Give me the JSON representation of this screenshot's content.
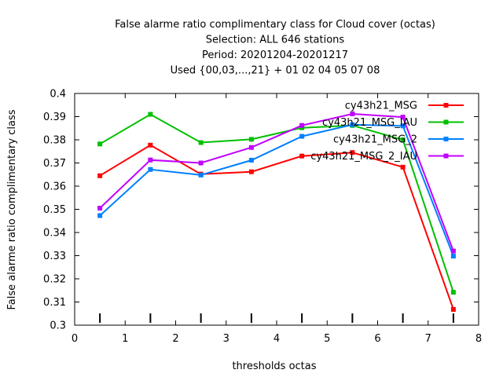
{
  "chart_data": {
    "type": "line",
    "title_lines": [
      "False alarme ratio complimentary class  for Cloud cover (octas)",
      "Selection: ALL    646 stations",
      "Period: 20201204-20201217",
      "Used {00,03,...,21} + 01 02 04 05 07 08"
    ],
    "xlabel": "thresholds octas",
    "ylabel": "False alarme ratio complimentary class",
    "xlim": [
      0,
      8
    ],
    "ylim": [
      0.3,
      0.4
    ],
    "xticks": [
      "0",
      "1",
      "2",
      "3",
      "4",
      "5",
      "6",
      "7",
      "8"
    ],
    "yticks": [
      "0.3",
      "0.31",
      "0.32",
      "0.33",
      "0.34",
      "0.35",
      "0.36",
      "0.37",
      "0.38",
      "0.39",
      "0.4"
    ],
    "grid": false,
    "legend_position": "top-right",
    "x": [
      0.5,
      1.5,
      2.5,
      3.5,
      4.5,
      5.5,
      6.5,
      7.5
    ],
    "series": [
      {
        "name": "cy43h21_MSG",
        "color": "#ff0000",
        "values": [
          0.3645,
          0.3777,
          0.3652,
          0.3662,
          0.373,
          0.3745,
          0.3682,
          0.3068
        ]
      },
      {
        "name": "cy43h21_MSG_IAU",
        "color": "#00c000",
        "values": [
          0.3782,
          0.391,
          0.3788,
          0.3802,
          0.3852,
          0.3862,
          0.38,
          0.3142
        ]
      },
      {
        "name": "cy43h21_MSG_2",
        "color": "#0080ff",
        "values": [
          0.3473,
          0.3672,
          0.3648,
          0.3712,
          0.3815,
          0.3865,
          0.386,
          0.3298
        ]
      },
      {
        "name": "cy43h21_MSG_2_IAU",
        "color": "#c000ff",
        "values": [
          0.3505,
          0.3713,
          0.37,
          0.3767,
          0.3862,
          0.3912,
          0.3898,
          0.332
        ]
      }
    ],
    "baseline_marks_x": [
      0.5,
      1.5,
      2.5,
      3.5,
      4.5,
      5.5,
      6.5,
      7.5
    ]
  }
}
